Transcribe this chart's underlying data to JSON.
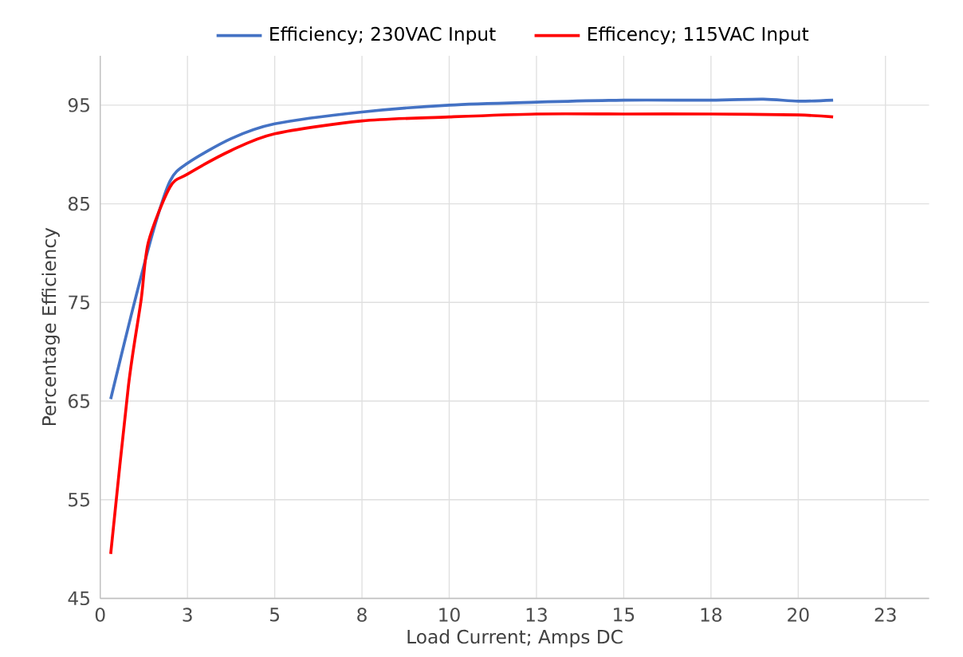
{
  "chart_data": {
    "type": "line",
    "xlabel": "Load Current; Amps DC",
    "ylabel": "Percentage Efficiency",
    "xlim": [
      0,
      23.75
    ],
    "ylim": [
      45,
      100
    ],
    "xticks": [
      0,
      {
        "value": 2.5,
        "label": "3"
      },
      5,
      {
        "value": 7.5,
        "label": "8"
      },
      10,
      {
        "value": 12.5,
        "label": "13"
      },
      15,
      {
        "value": 17.5,
        "label": "18"
      },
      20,
      {
        "value": 22.5,
        "label": "23"
      }
    ],
    "yticks": [
      45,
      55,
      65,
      75,
      85,
      95
    ],
    "grid": true,
    "legend": "top",
    "line_style": "solid",
    "series": [
      {
        "name": "Efficiency; 230VAC Input",
        "color": "#4472c4",
        "x": [
          0.3,
          0.88,
          1.5,
          2,
          2.5,
          3.75,
          5,
          7.5,
          10,
          12.5,
          15,
          17.5,
          19,
          20,
          21
        ],
        "values": [
          65.2,
          73.6,
          82,
          87.3,
          89.1,
          91.6,
          93.1,
          94.3,
          95.0,
          95.3,
          95.5,
          95.5,
          95.6,
          95.4,
          95.5
        ]
      },
      {
        "name": "Efficency; 115VAC Input",
        "color": "#ff0000",
        "x": [
          0.3,
          0.81,
          1.17,
          1.38,
          2,
          2.5,
          3.75,
          5,
          7.5,
          10,
          12.5,
          15,
          17.5,
          20,
          21
        ],
        "values": [
          49.5,
          66.6,
          75.2,
          81.1,
          86.7,
          88.0,
          90.4,
          92.1,
          93.4,
          93.8,
          94.1,
          94.1,
          94.1,
          94.0,
          93.8
        ]
      }
    ]
  }
}
